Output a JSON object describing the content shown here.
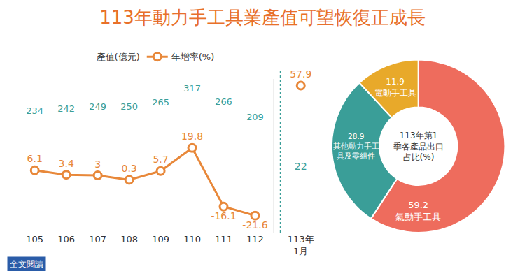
{
  "title": "113年動力手工具業產值可望恢復正成長",
  "footer": "全文閱讀",
  "chart_data": [
    {
      "type": "bar",
      "categories": [
        "105",
        "106",
        "107",
        "108",
        "109",
        "110",
        "111",
        "112"
      ],
      "series": [
        {
          "name": "產值(億元)",
          "type": "bar",
          "color": "#3a9e98",
          "values": [
            234,
            242,
            249,
            250,
            265,
            317,
            266,
            209
          ]
        },
        {
          "name": "年增率(%)",
          "type": "line",
          "axis": "y2",
          "color": "#e8883a",
          "marker": "circle",
          "values": [
            6.1,
            3.4,
            3.0,
            0.3,
            5.7,
            19.8,
            -16.1,
            -21.6
          ]
        }
      ],
      "ylim": [
        -200,
        380
      ],
      "yticks": [],
      "y2lim": [
        -32,
        62
      ],
      "y2ticks": [],
      "tick_labels": "x",
      "data_labels": true,
      "legend": "top"
    },
    {
      "type": "bar",
      "categories": [
        "113年1月"
      ],
      "series": [
        {
          "type": "bar",
          "color": "#3a9e98",
          "values": [
            22
          ]
        },
        {
          "type": "line",
          "axis": "y2",
          "color": "#e8883a",
          "marker": "circle",
          "values": [
            57.9
          ]
        }
      ],
      "ylim": [
        -200,
        380
      ],
      "yticks": [],
      "y2lim": [
        -32,
        62
      ],
      "y2ticks": [],
      "tick_labels": "x",
      "data_labels": true
    },
    {
      "type": "pie",
      "title": "113年第1季各產品出口占比(%)",
      "categories": [
        "氣動手工具",
        "其他動力手工具及零組件",
        "電動手工具"
      ],
      "values": [
        59.2,
        28.9,
        11.9
      ],
      "colors": [
        "#ee6c5d",
        "#3a9e98",
        "#e8a92a"
      ],
      "data_labels": true
    }
  ]
}
